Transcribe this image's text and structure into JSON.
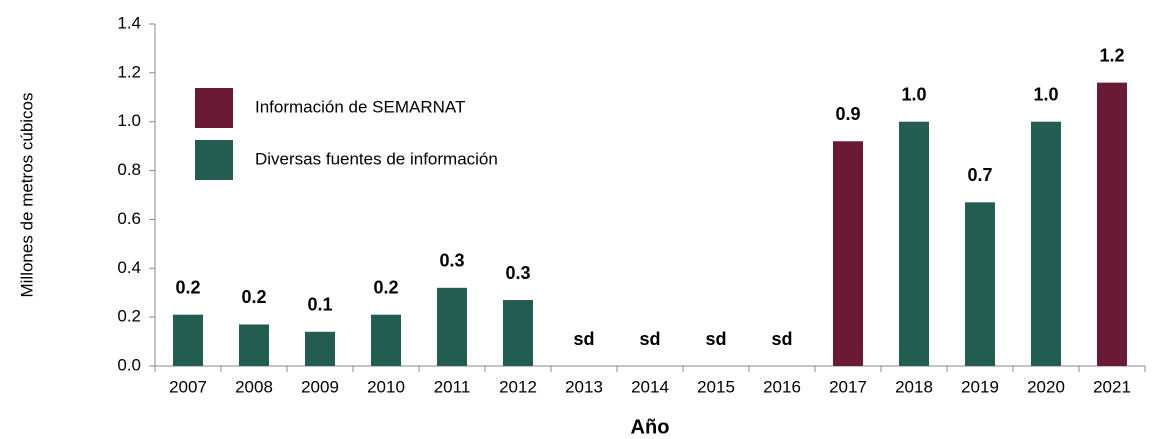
{
  "chart_data": {
    "type": "bar",
    "y_label": "Millones de metros cúbicos",
    "x_label": "Año",
    "categories": [
      "2007",
      "2008",
      "2009",
      "2010",
      "2011",
      "2012",
      "2013",
      "2014",
      "2015",
      "2016",
      "2017",
      "2018",
      "2019",
      "2020",
      "2021"
    ],
    "series": [
      {
        "name": "Información de SEMARNAT",
        "color": "#6b1a33",
        "values": [
          null,
          null,
          null,
          null,
          null,
          null,
          null,
          null,
          null,
          null,
          0.92,
          null,
          null,
          null,
          1.16
        ],
        "value_labels": [
          null,
          null,
          null,
          null,
          null,
          null,
          null,
          null,
          null,
          null,
          "0.9",
          null,
          null,
          null,
          "1.2"
        ]
      },
      {
        "name": "Diversas fuentes de información",
        "color": "#235c50",
        "values": [
          0.21,
          0.17,
          0.14,
          0.21,
          0.32,
          0.27,
          null,
          null,
          null,
          null,
          null,
          1.0,
          0.67,
          1.0,
          null
        ],
        "value_labels": [
          "0.2",
          "0.2",
          "0.1",
          "0.2",
          "0.3",
          "0.3",
          "sd",
          "sd",
          "sd",
          "sd",
          null,
          "1.0",
          "0.7",
          "1.0",
          null
        ]
      }
    ],
    "ylim": [
      0,
      1.4
    ],
    "yticks": [
      {
        "value": 0,
        "label": "0.0"
      },
      0.2,
      0.4,
      0.6,
      0.8,
      {
        "value": 1,
        "label": "1.0"
      },
      1.2,
      1.4
    ],
    "grid": false
  }
}
